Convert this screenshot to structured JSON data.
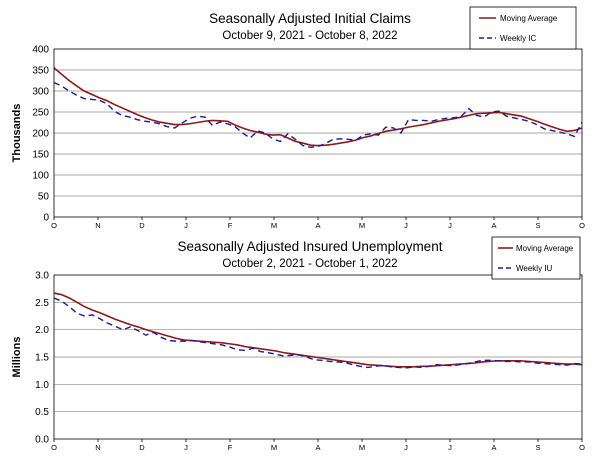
{
  "colors": {
    "moving_average": "#8b1a1a",
    "weekly": "#1a1a9c",
    "grid": "#8a8a8a"
  },
  "chart_data": [
    {
      "type": "line",
      "title": "Seasonally Adjusted Initial Claims",
      "subtitle": "October 9, 2021 - October 8, 2022",
      "ylabel": "Thousands",
      "ylim": [
        0,
        400
      ],
      "yticks": [
        "0",
        "50",
        "100",
        "150",
        "200",
        "250",
        "300",
        "350",
        "400"
      ],
      "xticks": [
        "O",
        "N",
        "D",
        "J",
        "F",
        "M",
        "A",
        "M",
        "J",
        "J",
        "A",
        "S",
        "O"
      ],
      "grid": true,
      "legend": "top-right",
      "series": [
        {
          "name": "Moving Average",
          "style": "solid",
          "values": [
            355,
            340,
            325,
            312,
            300,
            292,
            284,
            277,
            268,
            260,
            252,
            244,
            237,
            231,
            226,
            223,
            220,
            220,
            222,
            225,
            228,
            230,
            229,
            228,
            219,
            212,
            206,
            202,
            197,
            195,
            196,
            188,
            180,
            176,
            171,
            170,
            171,
            173,
            176,
            179,
            183,
            189,
            193,
            199,
            204,
            207,
            210,
            214,
            217,
            220,
            224,
            228,
            231,
            234,
            238,
            242,
            246,
            247,
            248,
            249,
            246,
            243,
            240,
            234,
            228,
            221,
            215,
            209,
            204,
            206,
            212
          ]
        },
        {
          "name": "Weekly IC",
          "style": "dashed",
          "values": [
            320,
            312,
            300,
            290,
            282,
            280,
            278,
            270,
            252,
            242,
            238,
            232,
            228,
            226,
            222,
            215,
            212,
            224,
            235,
            240,
            238,
            218,
            226,
            222,
            215,
            200,
            188,
            205,
            200,
            186,
            180,
            198,
            185,
            170,
            166,
            168,
            175,
            185,
            186,
            185,
            183,
            195,
            198,
            195,
            214,
            212,
            200,
            232,
            230,
            230,
            228,
            232,
            235,
            236,
            240,
            258,
            242,
            238,
            250,
            252,
            240,
            236,
            232,
            228,
            220,
            210,
            206,
            202,
            198,
            192,
            225
          ]
        }
      ]
    },
    {
      "type": "line",
      "title": "Seasonally Adjusted Insured Unemployment",
      "subtitle": "October 2, 2021 - October 1, 2022",
      "ylabel": "Millions",
      "ylim": [
        0,
        3.0
      ],
      "yticks": [
        "0.0",
        "0.5",
        "1.0",
        "1.5",
        "2.0",
        "2.5",
        "3.0"
      ],
      "xticks": [
        "O",
        "N",
        "D",
        "J",
        "F",
        "M",
        "A",
        "M",
        "J",
        "J",
        "A",
        "S",
        "O"
      ],
      "grid": true,
      "legend": "top-right",
      "series": [
        {
          "name": "Moving Average",
          "style": "solid",
          "values": [
            2.67,
            2.64,
            2.58,
            2.5,
            2.42,
            2.36,
            2.31,
            2.25,
            2.19,
            2.14,
            2.09,
            2.05,
            2.0,
            1.96,
            1.92,
            1.88,
            1.84,
            1.81,
            1.8,
            1.79,
            1.78,
            1.77,
            1.76,
            1.74,
            1.72,
            1.69,
            1.67,
            1.65,
            1.63,
            1.61,
            1.58,
            1.56,
            1.54,
            1.52,
            1.5,
            1.48,
            1.46,
            1.44,
            1.42,
            1.4,
            1.38,
            1.36,
            1.35,
            1.34,
            1.33,
            1.32,
            1.32,
            1.32,
            1.33,
            1.33,
            1.34,
            1.35,
            1.36,
            1.37,
            1.38,
            1.39,
            1.41,
            1.42,
            1.43,
            1.43,
            1.43,
            1.43,
            1.42,
            1.41,
            1.4,
            1.39,
            1.38,
            1.37,
            1.37,
            1.36
          ]
        },
        {
          "name": "Weekly IU",
          "style": "dashed",
          "values": [
            2.58,
            2.52,
            2.42,
            2.3,
            2.25,
            2.27,
            2.2,
            2.12,
            2.06,
            2.0,
            2.05,
            1.98,
            1.9,
            1.95,
            1.86,
            1.8,
            1.79,
            1.79,
            1.8,
            1.78,
            1.76,
            1.74,
            1.72,
            1.68,
            1.63,
            1.62,
            1.66,
            1.6,
            1.58,
            1.55,
            1.52,
            1.53,
            1.54,
            1.5,
            1.45,
            1.44,
            1.42,
            1.41,
            1.4,
            1.36,
            1.33,
            1.31,
            1.33,
            1.35,
            1.32,
            1.31,
            1.3,
            1.32,
            1.31,
            1.33,
            1.36,
            1.35,
            1.34,
            1.36,
            1.38,
            1.41,
            1.44,
            1.44,
            1.43,
            1.42,
            1.42,
            1.41,
            1.41,
            1.39,
            1.38,
            1.37,
            1.36,
            1.35,
            1.38,
            1.37
          ]
        }
      ]
    }
  ]
}
